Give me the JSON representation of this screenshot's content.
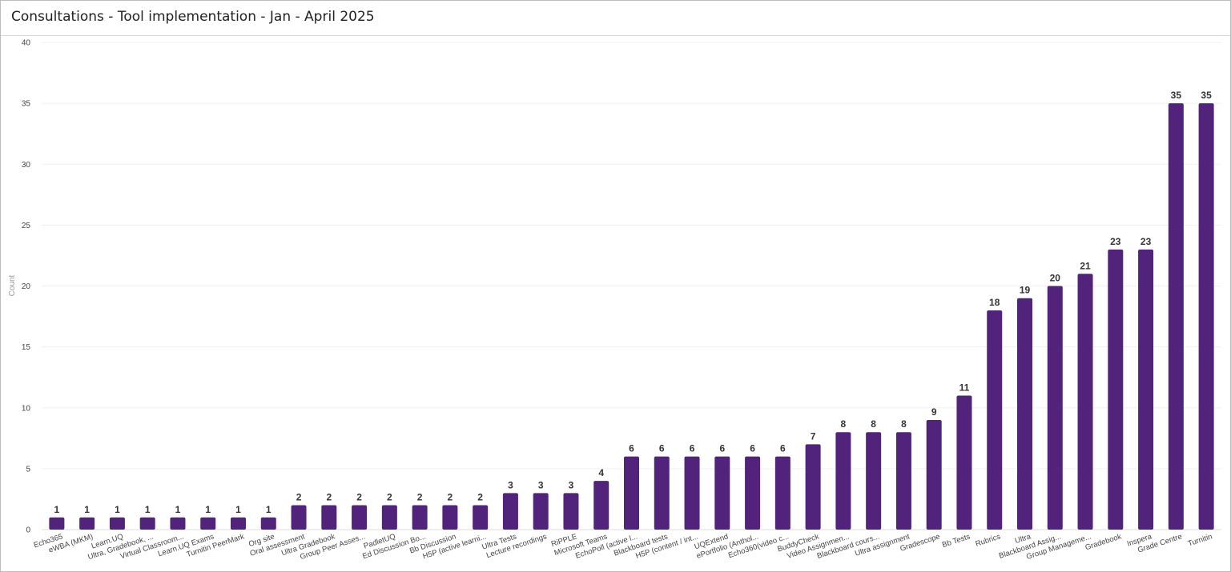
{
  "header": {
    "title": "Consultations - Tool implementation - Jan - April 2025"
  },
  "chart_data": {
    "type": "bar",
    "title": "Consultations - Tool implementation - Jan - April 2025",
    "ylabel": "Count",
    "xlabel": "",
    "ylim": [
      0,
      40
    ],
    "yticks": [
      0,
      5,
      10,
      15,
      20,
      25,
      30,
      35,
      40
    ],
    "grid": true,
    "bar_color": "#52237a",
    "categories": [
      "Echo365",
      "eWBA (MKM)",
      "Learn.UQ",
      "Ultra, Gradebook, ...",
      "Virtual Classroom...",
      "Learn.UQ Exams",
      "Turnitin PeerMark",
      "Org site",
      "Oral assessment",
      "Ultra Gradebook",
      "Group Peer Asses...",
      "PadletUQ",
      "Ed Discussion Bo...",
      "Bb Discussion",
      "H5P (active learni...",
      "Ultra Tests",
      "Lecture recordings",
      "RiPPLE",
      "Microsoft Teams",
      "EchoPoll (active l...",
      "Blackboard tests",
      "H5P (content / int...",
      "UQExtend",
      "ePortfolio (Anthol...",
      "Echo360(video c...",
      "BuddyCheck",
      "Video Assignmen...",
      "Blackboard cours...",
      "Ultra assignment",
      "Gradescope",
      "Bb Tests",
      "Rubrics",
      "Ultra",
      "Blackboard Assig...",
      "Group Manageme...",
      "Gradebook",
      "Inspera",
      "Grade Centre",
      "Turnitin"
    ],
    "values": [
      1,
      1,
      1,
      1,
      1,
      1,
      1,
      1,
      2,
      2,
      2,
      2,
      2,
      2,
      2,
      3,
      3,
      3,
      4,
      6,
      6,
      6,
      6,
      6,
      6,
      7,
      8,
      8,
      8,
      9,
      11,
      18,
      19,
      20,
      21,
      23,
      23,
      35,
      35
    ]
  }
}
